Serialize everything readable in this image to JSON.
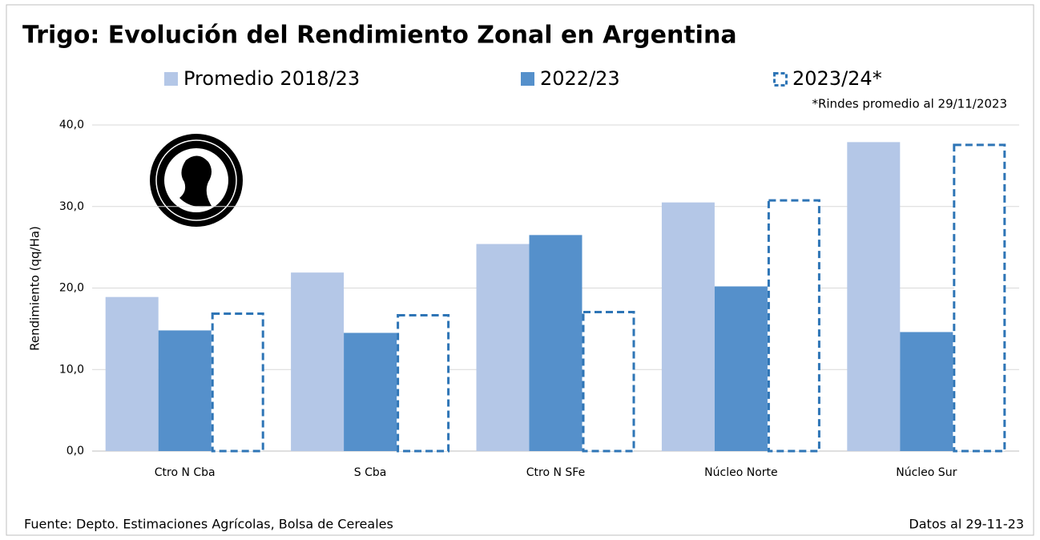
{
  "chart_data": {
    "type": "bar",
    "title": "Trigo: Evolución del Rendimiento Zonal en Argentina",
    "y_label": "Rendimiento (qq/Ha)",
    "annotation": "*Rindes promedio al 29/11/2023",
    "source": "Fuente: Depto. Estimaciones Agrícolas, Bolsa de Cereales",
    "date_note": "Datos al 29-11-23",
    "categories": [
      "Ctro N Cba",
      "S Cba",
      "Ctro N SFe",
      "Núcleo Norte",
      "Núcleo Sur"
    ],
    "series": [
      {
        "name": "Promedio 2018/23",
        "color": "#b4c7e7",
        "style": "solid",
        "values": [
          18.9,
          21.9,
          25.4,
          30.5,
          37.9
        ]
      },
      {
        "name": "2022/23",
        "color": "#5590cb",
        "style": "solid",
        "values": [
          14.8,
          14.5,
          26.5,
          20.2,
          14.6
        ]
      },
      {
        "name": "2023/24*",
        "color": "#2e75b6",
        "style": "dashed",
        "values": [
          17.0,
          16.8,
          17.2,
          30.9,
          37.7
        ]
      }
    ],
    "ylim": [
      0,
      40
    ],
    "yticks": [
      {
        "value": 0,
        "label": "0,0"
      },
      {
        "value": 10,
        "label": "10,0"
      },
      {
        "value": 20,
        "label": "20,0"
      },
      {
        "value": 30,
        "label": "30,0"
      },
      {
        "value": 40,
        "label": "40,0"
      }
    ],
    "grid": true
  }
}
